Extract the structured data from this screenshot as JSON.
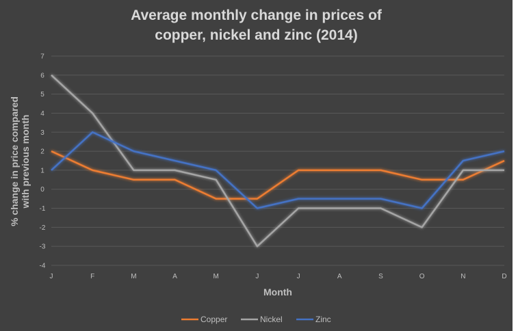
{
  "chart_data": {
    "type": "line",
    "title_lines": [
      "Average monthly change in prices of",
      "copper, nickel and zinc (2014)"
    ],
    "xlabel": "Month",
    "ylabel_lines": [
      "% change in price compared",
      "with previous month"
    ],
    "categories": [
      "J",
      "F",
      "M",
      "A",
      "M",
      "J",
      "J",
      "A",
      "S",
      "O",
      "N",
      "D"
    ],
    "ylim": [
      -4,
      7
    ],
    "yticks": [
      7,
      6,
      5,
      4,
      3,
      2,
      1,
      0,
      -1,
      -2,
      -3,
      -4
    ],
    "grid": true,
    "legend_position": "bottom",
    "series": [
      {
        "name": "Copper",
        "color": "#ed7d31",
        "values": [
          2,
          1,
          0.5,
          0.5,
          -0.5,
          -0.5,
          1,
          1,
          1,
          0.5,
          0.5,
          1.5
        ]
      },
      {
        "name": "Nickel",
        "color": "#a5a5a5",
        "values": [
          6,
          4,
          1,
          1,
          0.5,
          -3,
          -1,
          -1,
          -1,
          -2,
          1,
          1
        ]
      },
      {
        "name": "Zinc",
        "color": "#4472c4",
        "values": [
          1,
          3,
          2,
          1.5,
          1,
          -1,
          -0.5,
          -0.5,
          -0.5,
          -1,
          1.5,
          2
        ]
      }
    ]
  },
  "colors": {
    "background": "#404040",
    "gridline": "#595959",
    "text": "#bfbfbf",
    "title": "#d9d9d9"
  }
}
